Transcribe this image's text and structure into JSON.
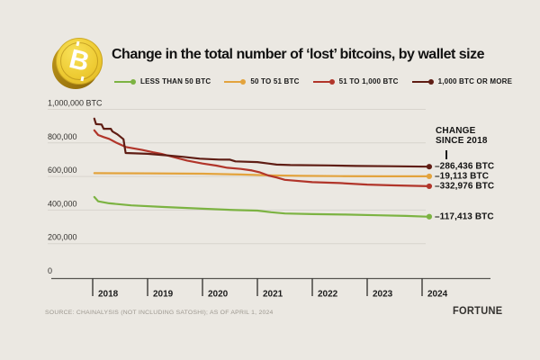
{
  "header": {
    "title": "Change in the total number of ‘lost’ bitcoins, by wallet size",
    "coin": {
      "icon": "bitcoin-coin-icon",
      "symbol": "B"
    }
  },
  "chart_data": {
    "type": "line",
    "title": "Change in the total number of ‘lost’ bitcoins, by wallet size",
    "unit": "BTC",
    "ylim": [
      0,
      1000000
    ],
    "xlim": [
      2018,
      2024.25
    ],
    "grid": "horizontal",
    "legend_position": "top",
    "y_ticks": [
      {
        "value": 1000000,
        "label": "1,000,000 BTC"
      },
      {
        "value": 800000,
        "label": "800,000"
      },
      {
        "value": 600000,
        "label": "600,000"
      },
      {
        "value": 400000,
        "label": "400,000"
      },
      {
        "value": 200000,
        "label": "200,000"
      },
      {
        "value": 0,
        "label": "0"
      }
    ],
    "x_ticks": [
      {
        "value": 2018,
        "label": "2018"
      },
      {
        "value": 2019,
        "label": "2019"
      },
      {
        "value": 2020,
        "label": "2020"
      },
      {
        "value": 2021,
        "label": "2021"
      },
      {
        "value": 2022,
        "label": "2022"
      },
      {
        "value": 2023,
        "label": "2023"
      },
      {
        "value": 2024,
        "label": "2024"
      }
    ],
    "annotation_header": {
      "line1": "CHANGE",
      "line2": "SINCE 2018"
    },
    "series": [
      {
        "name": "LESS THAN 50 BTC",
        "color": "#7cb342",
        "draw_order": 2,
        "change_label": "–117,413 BTC",
        "points": [
          [
            2018.03,
            478000
          ],
          [
            2018.1,
            452000
          ],
          [
            2018.3,
            440000
          ],
          [
            2018.7,
            428000
          ],
          [
            2019.3,
            418000
          ],
          [
            2020.0,
            408000
          ],
          [
            2020.6,
            400000
          ],
          [
            2021.0,
            397000
          ],
          [
            2021.25,
            387000
          ],
          [
            2021.5,
            379500
          ],
          [
            2022.0,
            376000
          ],
          [
            2022.6,
            373000
          ],
          [
            2023.2,
            369000
          ],
          [
            2023.7,
            365000
          ],
          [
            2024.13,
            360587
          ]
        ]
      },
      {
        "name": "50 TO 51 BTC",
        "color": "#e3a33d",
        "draw_order": 1,
        "change_label": "–19,113 BTC",
        "points": [
          [
            2018.03,
            620000
          ],
          [
            2019.0,
            618500
          ],
          [
            2020.0,
            616500
          ],
          [
            2020.7,
            612000
          ],
          [
            2021.2,
            607000
          ],
          [
            2021.8,
            603500
          ],
          [
            2022.5,
            602000
          ],
          [
            2023.3,
            601200
          ],
          [
            2024.13,
            600887
          ]
        ]
      },
      {
        "name": "51 TO 1,000 BTC",
        "color": "#b1352a",
        "draw_order": 3,
        "change_label": "–332,976 BTC",
        "points": [
          [
            2018.03,
            875000
          ],
          [
            2018.1,
            847000
          ],
          [
            2018.2,
            835000
          ],
          [
            2018.3,
            824000
          ],
          [
            2018.42,
            803000
          ],
          [
            2018.6,
            776000
          ],
          [
            2018.9,
            758000
          ],
          [
            2019.1,
            744000
          ],
          [
            2019.25,
            735000
          ],
          [
            2019.5,
            713000
          ],
          [
            2019.72,
            695000
          ],
          [
            2020.0,
            677000
          ],
          [
            2020.25,
            665000
          ],
          [
            2020.45,
            652000
          ],
          [
            2020.7,
            645000
          ],
          [
            2020.9,
            636000
          ],
          [
            2021.05,
            624000
          ],
          [
            2021.2,
            606000
          ],
          [
            2021.35,
            594000
          ],
          [
            2021.5,
            580000
          ],
          [
            2022.0,
            566000
          ],
          [
            2022.5,
            561000
          ],
          [
            2023.0,
            552000
          ],
          [
            2023.5,
            547000
          ],
          [
            2024.13,
            542024
          ]
        ]
      },
      {
        "name": "1,000 BTC OR MORE",
        "color": "#5f1d14",
        "draw_order": 4,
        "change_label": "–286,436 BTC",
        "points": [
          [
            2018.03,
            945000
          ],
          [
            2018.06,
            912000
          ],
          [
            2018.16,
            910000
          ],
          [
            2018.2,
            884000
          ],
          [
            2018.33,
            884000
          ],
          [
            2018.36,
            868000
          ],
          [
            2018.45,
            851000
          ],
          [
            2018.56,
            822000
          ],
          [
            2018.6,
            740000
          ],
          [
            2019.0,
            735000
          ],
          [
            2019.35,
            726000
          ],
          [
            2019.65,
            717000
          ],
          [
            2019.95,
            706000
          ],
          [
            2020.3,
            701000
          ],
          [
            2020.5,
            700000
          ],
          [
            2020.6,
            690000
          ],
          [
            2021.0,
            686000
          ],
          [
            2021.2,
            677000
          ],
          [
            2021.35,
            671000
          ],
          [
            2021.6,
            668000
          ],
          [
            2022.3,
            666000
          ],
          [
            2022.8,
            663000
          ],
          [
            2023.4,
            661000
          ],
          [
            2024.13,
            658564
          ]
        ]
      }
    ],
    "colors": {
      "background": "#ebe8e2",
      "gridline": "#d8d4cd",
      "axis": "#57544f",
      "tick": "#2d2c2a",
      "axis_label": "#33312e",
      "annotation_text": "#131313"
    }
  },
  "footer": {
    "source": "SOURCE: CHAINALYSIS (NOT INCLUDING SATOSHI); AS OF APRIL 1, 2024",
    "brand": "FORTUNE"
  }
}
